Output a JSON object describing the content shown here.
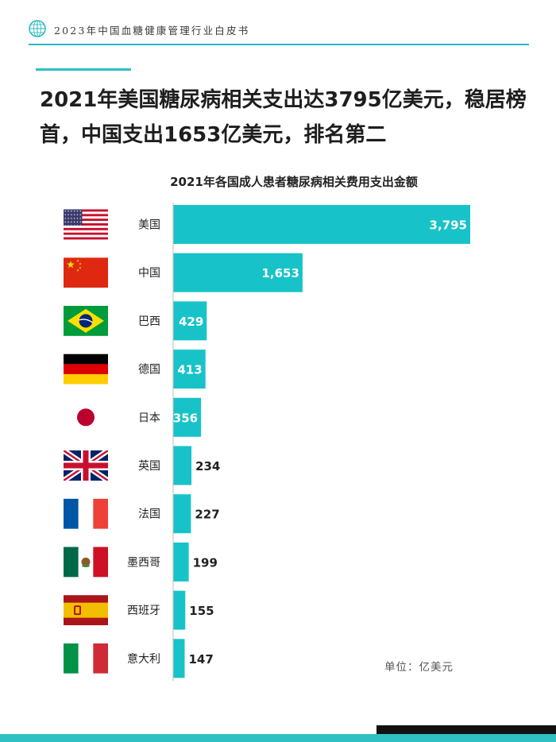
{
  "header": {
    "title": "2023年中国血糖健康管理行业白皮书"
  },
  "headline": {
    "line1": "2021年美国糖尿病相关支出达3795亿美元，稳居榜",
    "line2": "首，中国支出1653亿美元，排名第二"
  },
  "chart_data": {
    "type": "bar",
    "orientation": "horizontal",
    "title": "2021年各国成人患者糖尿病相关费用支出金额",
    "categories": [
      "美国",
      "中国",
      "巴西",
      "德国",
      "日本",
      "英国",
      "法国",
      "墨西哥",
      "西班牙",
      "意大利"
    ],
    "values": [
      3795,
      1653,
      429,
      413,
      356,
      234,
      227,
      199,
      155,
      147
    ],
    "value_labels": [
      "3,795",
      "1,653",
      "429",
      "413",
      "356",
      "234",
      "227",
      "199",
      "155",
      "147"
    ],
    "flags": [
      "usa-flag",
      "china-flag",
      "brazil-flag",
      "germany-flag",
      "japan-flag",
      "uk-flag",
      "france-flag",
      "mexico-flag",
      "spain-flag",
      "italy-flag"
    ],
    "unit": "单位：亿美元",
    "bar_color": "#17c3c8",
    "inside_label_color": "#ffffff",
    "outside_label_color": "#222222",
    "xlim": [
      0,
      3795
    ],
    "legend": "none",
    "grid": false
  }
}
